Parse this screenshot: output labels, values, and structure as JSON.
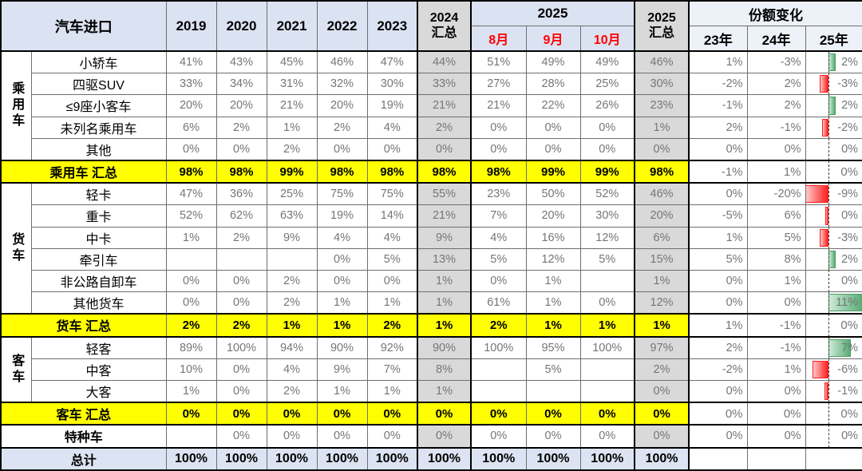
{
  "header": {
    "title": "汽车进口",
    "years": [
      "2019",
      "2020",
      "2021",
      "2022",
      "2023"
    ],
    "sum2024": [
      "2024",
      "汇总"
    ],
    "y2025": "2025",
    "months": [
      "8月",
      "9月",
      "10月"
    ],
    "sum2025": [
      "2025",
      "汇总"
    ],
    "share_change": "份额变化",
    "share_years": [
      "23年",
      "24年",
      "25年"
    ]
  },
  "colors": {
    "header_bg": "#dbe2f1",
    "share_header_bg": "#edf1f8",
    "sum_column_bg": "#d9d9d9",
    "subtotal_bg": "#ffff00",
    "total_row_bg": "#dce3f2",
    "value_text": "#767676",
    "month_text": "#ff0000",
    "bar_positive": "#58ac74",
    "bar_negative": "#ff1f1f"
  },
  "rows": [
    {
      "id": "sedan",
      "kind": "data",
      "group": {
        "id": "passenger",
        "label": "乘用车",
        "span": 5
      },
      "name": "小轿车",
      "values": [
        "41%",
        "43%",
        "45%",
        "46%",
        "47%",
        "44%",
        "51%",
        "49%",
        "49%",
        "46%",
        "1%",
        "-3%",
        "2%"
      ],
      "bar": 2
    },
    {
      "id": "suv-4wd",
      "kind": "data",
      "name": "四驱SUV",
      "values": [
        "33%",
        "34%",
        "31%",
        "32%",
        "30%",
        "33%",
        "27%",
        "28%",
        "25%",
        "30%",
        "-2%",
        "2%",
        "-3%"
      ],
      "bar": -3
    },
    {
      "id": "minibus-le9",
      "kind": "data",
      "name": "≤9座小客车",
      "values": [
        "20%",
        "20%",
        "21%",
        "20%",
        "19%",
        "21%",
        "21%",
        "22%",
        "26%",
        "23%",
        "-1%",
        "2%",
        "2%"
      ],
      "bar": 2
    },
    {
      "id": "unlisted-passenger",
      "kind": "data",
      "name": "未列名乘用车",
      "values": [
        "6%",
        "2%",
        "1%",
        "2%",
        "4%",
        "2%",
        "0%",
        "0%",
        "0%",
        "1%",
        "2%",
        "-1%",
        "-2%"
      ],
      "bar": -2
    },
    {
      "id": "other",
      "kind": "data",
      "name": "其他",
      "values": [
        "0%",
        "0%",
        "2%",
        "0%",
        "0%",
        "0%",
        "0%",
        "0%",
        "0%",
        "0%",
        "0%",
        "0%",
        "0%"
      ],
      "bar": 0
    },
    {
      "id": "passenger-subtotal",
      "kind": "subtotal",
      "name": "乘用车 汇总",
      "values": [
        "98%",
        "98%",
        "99%",
        "98%",
        "98%",
        "98%",
        "98%",
        "99%",
        "99%",
        "98%",
        "-1%",
        "1%",
        "0%"
      ],
      "bar": 0
    },
    {
      "id": "light-truck",
      "kind": "data",
      "group": {
        "id": "truck",
        "label": "货车",
        "span": 6
      },
      "name": "轻卡",
      "values": [
        "47%",
        "36%",
        "25%",
        "75%",
        "75%",
        "55%",
        "23%",
        "50%",
        "52%",
        "46%",
        "0%",
        "-20%",
        "-9%"
      ],
      "bar": -9
    },
    {
      "id": "heavy-truck",
      "kind": "data",
      "name": "重卡",
      "values": [
        "52%",
        "62%",
        "63%",
        "19%",
        "14%",
        "21%",
        "7%",
        "20%",
        "30%",
        "20%",
        "-5%",
        "6%",
        "0%"
      ],
      "bar": -0.5
    },
    {
      "id": "medium-truck",
      "kind": "data",
      "name": "中卡",
      "values": [
        "1%",
        "2%",
        "9%",
        "4%",
        "4%",
        "9%",
        "4%",
        "16%",
        "12%",
        "6%",
        "1%",
        "5%",
        "-3%"
      ],
      "bar": -3
    },
    {
      "id": "tractor",
      "kind": "data",
      "name": "牵引车",
      "values": [
        "",
        "",
        "",
        "0%",
        "5%",
        "13%",
        "5%",
        "12%",
        "5%",
        "15%",
        "5%",
        "8%",
        "2%"
      ],
      "bar": 2
    },
    {
      "id": "offroad-dump",
      "kind": "data",
      "name": "非公路自卸车",
      "values": [
        "0%",
        "0%",
        "2%",
        "0%",
        "0%",
        "1%",
        "0%",
        "1%",
        "",
        "1%",
        "0%",
        "1%",
        "0%"
      ],
      "bar": 0
    },
    {
      "id": "other-truck",
      "kind": "data",
      "name": "其他货车",
      "values": [
        "0%",
        "0%",
        "2%",
        "1%",
        "1%",
        "1%",
        "61%",
        "1%",
        "0%",
        "12%",
        "0%",
        "0%",
        "11%"
      ],
      "bar": 11
    },
    {
      "id": "truck-subtotal",
      "kind": "subtotal",
      "name": "货车 汇总",
      "values": [
        "2%",
        "2%",
        "1%",
        "1%",
        "2%",
        "1%",
        "2%",
        "1%",
        "1%",
        "1%",
        "1%",
        "-1%",
        "0%"
      ],
      "bar": 0
    },
    {
      "id": "light-bus",
      "kind": "data",
      "group": {
        "id": "bus",
        "label": "客车",
        "span": 3
      },
      "name": "轻客",
      "values": [
        "89%",
        "100%",
        "94%",
        "90%",
        "92%",
        "90%",
        "100%",
        "95%",
        "100%",
        "97%",
        "2%",
        "-1%",
        "7%"
      ],
      "bar": 7
    },
    {
      "id": "medium-bus",
      "kind": "data",
      "name": "中客",
      "values": [
        "10%",
        "0%",
        "4%",
        "9%",
        "7%",
        "8%",
        "",
        "5%",
        "",
        "2%",
        "-2%",
        "1%",
        "-6%"
      ],
      "bar": -6
    },
    {
      "id": "large-bus",
      "kind": "data",
      "name": "大客",
      "values": [
        "1%",
        "0%",
        "2%",
        "1%",
        "1%",
        "1%",
        "",
        "",
        "",
        "0%",
        "0%",
        "0%",
        "-1%"
      ],
      "bar": -1
    },
    {
      "id": "bus-subtotal",
      "kind": "subtotal",
      "name": "客车 汇总",
      "values": [
        "0%",
        "0%",
        "0%",
        "0%",
        "0%",
        "0%",
        "0%",
        "0%",
        "0%",
        "0%",
        "0%",
        "0%",
        "0%"
      ],
      "bar": 0
    },
    {
      "id": "special-vehicle",
      "kind": "special",
      "name": "特种车",
      "values": [
        "",
        "0%",
        "0%",
        "0%",
        "0%",
        "0%",
        "0%",
        "0%",
        "0%",
        "0%",
        "0%",
        "0%",
        "0%"
      ],
      "bar": 0
    },
    {
      "id": "total",
      "kind": "total",
      "name": "总计",
      "values": [
        "100%",
        "100%",
        "100%",
        "100%",
        "100%",
        "100%",
        "100%",
        "100%",
        "100%",
        "100%",
        "",
        "",
        ""
      ],
      "bar": 0
    }
  ]
}
